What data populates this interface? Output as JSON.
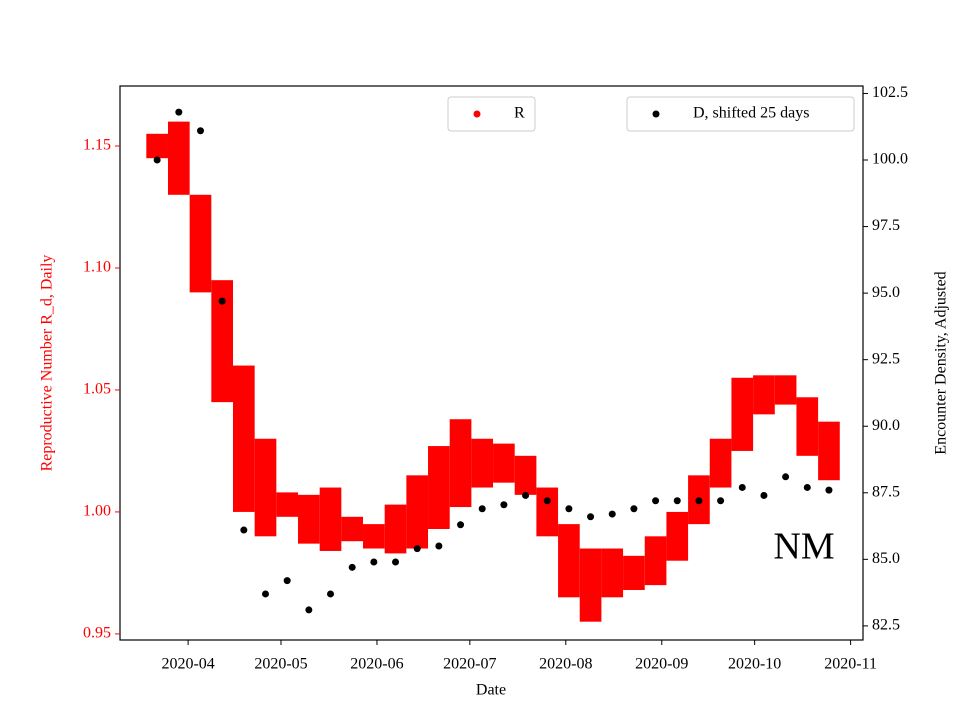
{
  "chart_data": {
    "type": "scatter",
    "xlabel": "Date",
    "ylabel": "Reproductive Number R_d, Daily",
    "y2label": "Encounter Density, Adjusted",
    "annotation": "NM",
    "xlim": [
      "2020-03-10",
      "2020-11-05"
    ],
    "xticks": [
      {
        "value": "2020-04-01",
        "label": "2020-04"
      },
      {
        "value": "2020-05-01",
        "label": "2020-05"
      },
      {
        "value": "2020-06-01",
        "label": "2020-06"
      },
      {
        "value": "2020-07-01",
        "label": "2020-07"
      },
      {
        "value": "2020-08-01",
        "label": "2020-08"
      },
      {
        "value": "2020-09-01",
        "label": "2020-09"
      },
      {
        "value": "2020-10-01",
        "label": "2020-10"
      },
      {
        "value": "2020-11-01",
        "label": "2020-11"
      }
    ],
    "ylim": [
      0.9475,
      1.1746
    ],
    "yticks": [
      {
        "value": 0.95,
        "label": "0.95"
      },
      {
        "value": 1.0,
        "label": "1.00"
      },
      {
        "value": 1.05,
        "label": "1.05"
      },
      {
        "value": 1.1,
        "label": "1.10"
      },
      {
        "value": 1.15,
        "label": "1.15"
      }
    ],
    "y2lim": [
      81.97,
      102.78
    ],
    "y2ticks": [
      {
        "value": 82.5,
        "label": "82.5"
      },
      {
        "value": 85,
        "label": "85.0"
      },
      {
        "value": 87.5,
        "label": "87.5"
      },
      {
        "value": 90,
        "label": "90.0"
      },
      {
        "value": 92.5,
        "label": "92.5"
      },
      {
        "value": 95,
        "label": "95.0"
      },
      {
        "value": 97.5,
        "label": "97.5"
      },
      {
        "value": 100,
        "label": "100.0"
      },
      {
        "value": 102.5,
        "label": "102.5"
      }
    ],
    "x": [
      "2020-03-22",
      "2020-03-29",
      "2020-04-05",
      "2020-04-12",
      "2020-04-19",
      "2020-04-26",
      "2020-05-03",
      "2020-05-10",
      "2020-05-17",
      "2020-05-24",
      "2020-05-31",
      "2020-06-07",
      "2020-06-14",
      "2020-06-21",
      "2020-06-28",
      "2020-07-05",
      "2020-07-12",
      "2020-07-19",
      "2020-07-26",
      "2020-08-02",
      "2020-08-09",
      "2020-08-16",
      "2020-08-23",
      "2020-08-30",
      "2020-09-06",
      "2020-09-13",
      "2020-09-20",
      "2020-09-27",
      "2020-10-04",
      "2020-10-11",
      "2020-10-18",
      "2020-10-25"
    ],
    "series": [
      {
        "name": "R",
        "color": "#ff0000",
        "values": [
          1.15,
          1.145,
          1.11,
          1.07,
          1.03,
          1.01,
          1.003,
          0.997,
          0.997,
          0.993,
          0.99,
          0.993,
          1.0,
          1.01,
          1.02,
          1.02,
          1.02,
          1.015,
          1.0,
          0.98,
          0.97,
          0.975,
          0.975,
          0.98,
          0.99,
          1.005,
          1.02,
          1.04,
          1.048,
          1.05,
          1.035,
          1.025
        ],
        "errors": [
          0.005,
          0.015,
          0.02,
          0.025,
          0.03,
          0.02,
          0.005,
          0.01,
          0.013,
          0.005,
          0.005,
          0.01,
          0.015,
          0.017,
          0.018,
          0.01,
          0.008,
          0.008,
          0.01,
          0.015,
          0.015,
          0.01,
          0.007,
          0.01,
          0.01,
          0.01,
          0.01,
          0.015,
          0.008,
          0.006,
          0.012,
          0.012
        ]
      },
      {
        "name": "D, shifted 25 days",
        "color": "#000000",
        "axis": "y2",
        "values": [
          100.0,
          101.8,
          101.1,
          94.7,
          86.1,
          83.7,
          84.2,
          83.1,
          83.7,
          84.7,
          84.9,
          84.9,
          85.4,
          85.5,
          86.3,
          86.9,
          87.05,
          87.4,
          87.2,
          86.9,
          86.6,
          86.7,
          86.9,
          87.2,
          87.2,
          87.2,
          87.2,
          87.7,
          87.4,
          88.1,
          87.7,
          87.6
        ]
      }
    ]
  }
}
